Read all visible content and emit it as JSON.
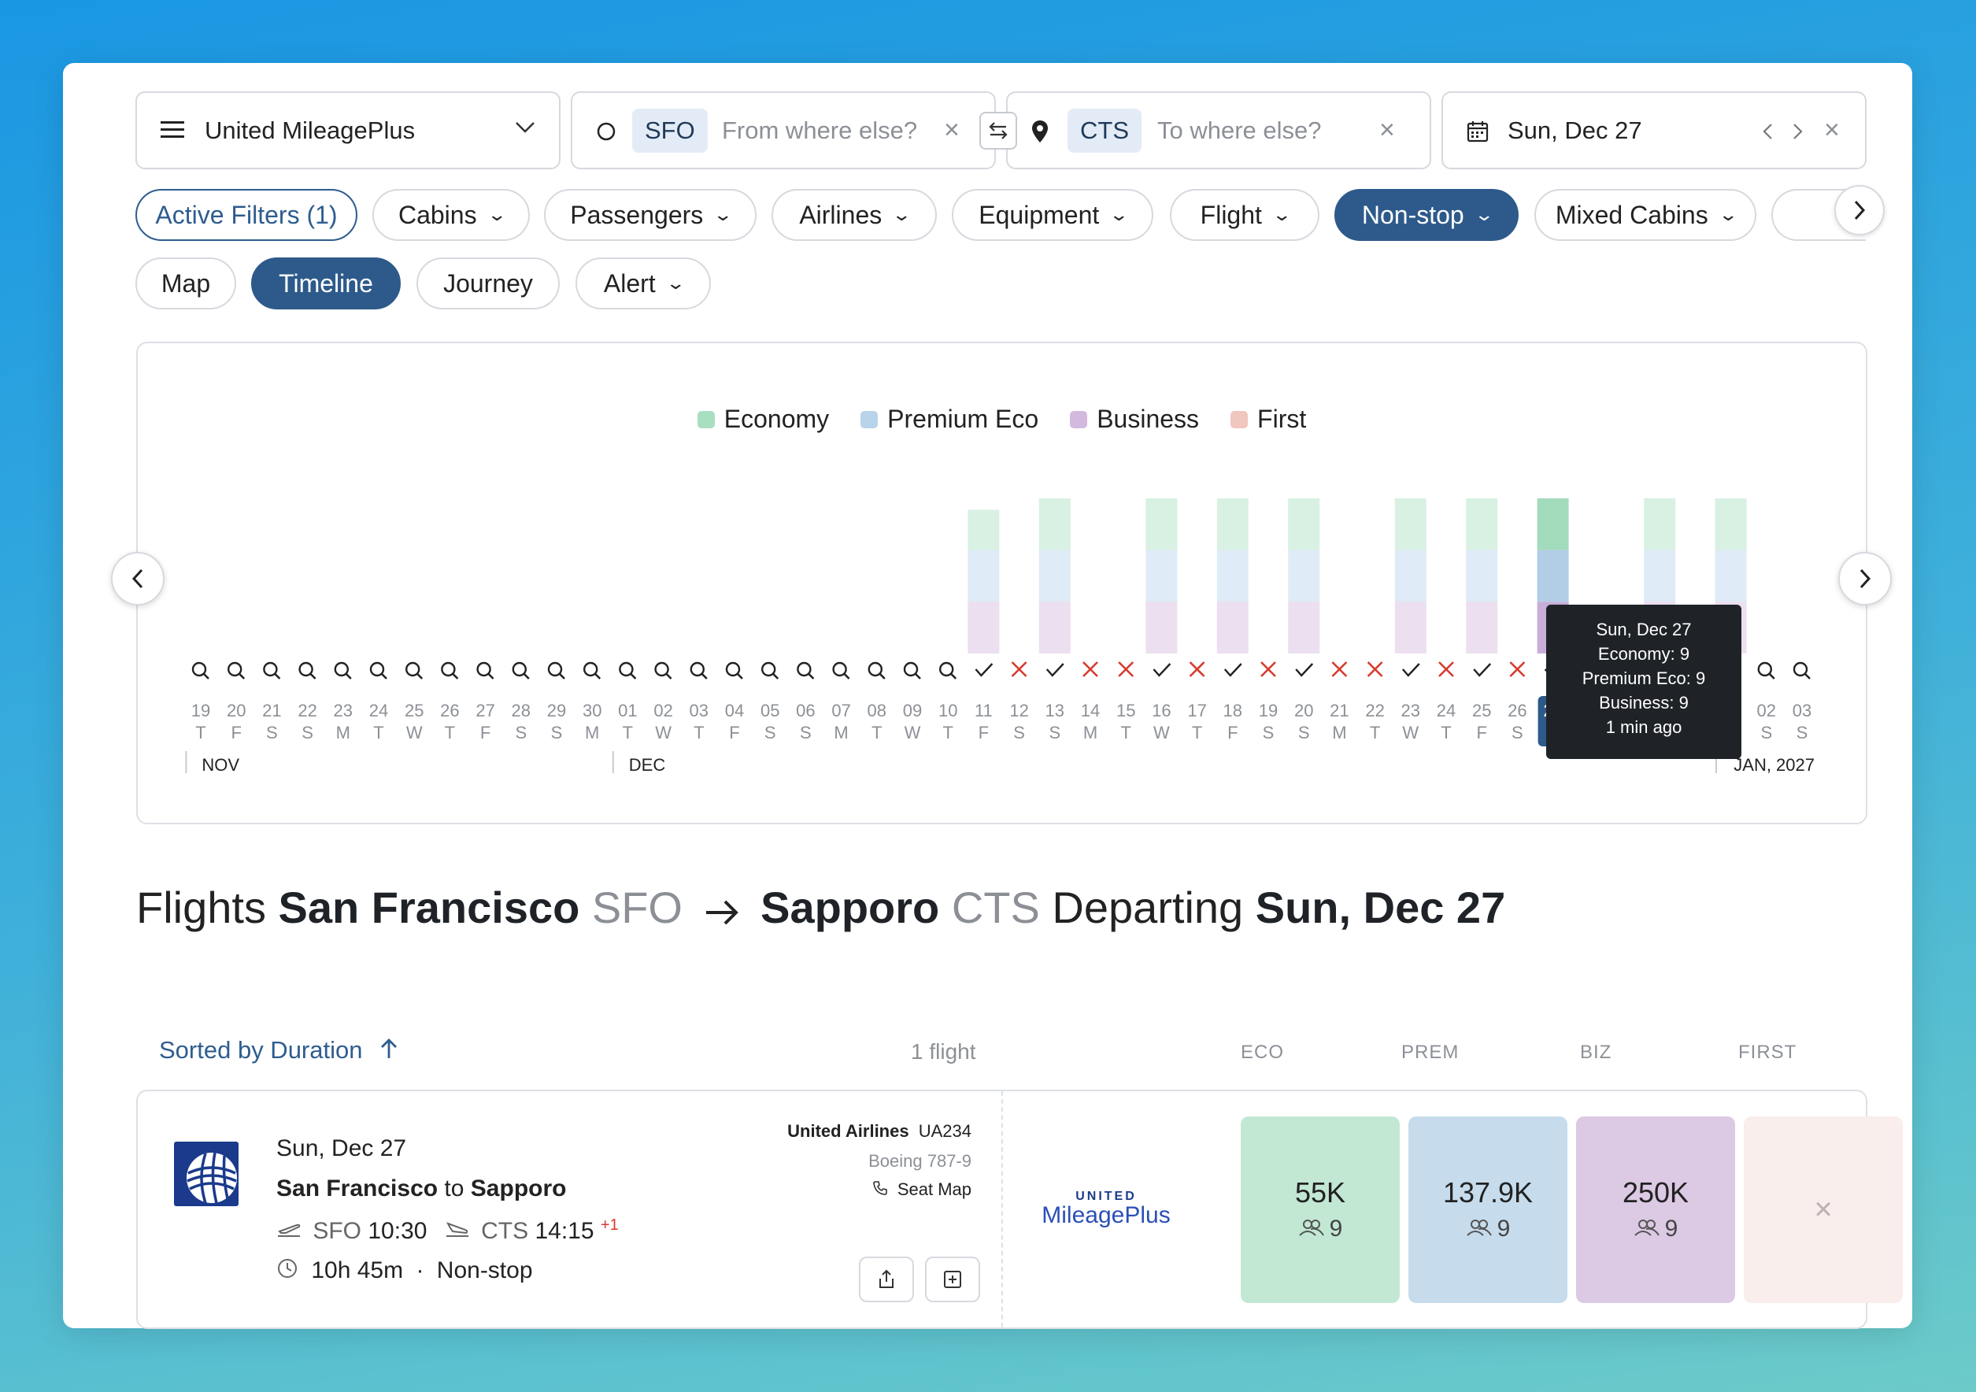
{
  "search": {
    "program": "United MileagePlus",
    "from_code": "SFO",
    "from_placeholder": "From where else?",
    "to_code": "CTS",
    "to_placeholder": "To where else?",
    "date": "Sun, Dec 27"
  },
  "filters": {
    "active": "Active Filters (1)",
    "items": [
      "Cabins",
      "Passengers",
      "Airlines",
      "Equipment",
      "Flight",
      "Non-stop",
      "Mixed Cabins"
    ]
  },
  "views": {
    "map": "Map",
    "timeline": "Timeline",
    "journey": "Journey",
    "alert": "Alert"
  },
  "colors": {
    "economy": "#a8dfc0",
    "premium": "#b9d3ea",
    "business": "#d4b9de",
    "first": "#f0c6bf",
    "brand": "#2d5a8a",
    "unavailable": "#d63b2e"
  },
  "chart_data": {
    "type": "bar",
    "legend": [
      "Economy",
      "Premium Eco",
      "Business",
      "First"
    ],
    "categories": [
      "19",
      "20",
      "21",
      "22",
      "23",
      "24",
      "25",
      "26",
      "27",
      "28",
      "29",
      "30",
      "01",
      "02",
      "03",
      "04",
      "05",
      "06",
      "07",
      "08",
      "09",
      "10",
      "11",
      "12",
      "13",
      "14",
      "15",
      "16",
      "17",
      "18",
      "19",
      "20",
      "21",
      "22",
      "23",
      "24",
      "25",
      "26",
      "27",
      "28",
      "29",
      "30",
      "31",
      "01",
      "02",
      "03"
    ],
    "weekdays": [
      "T",
      "F",
      "S",
      "S",
      "M",
      "T",
      "W",
      "T",
      "F",
      "S",
      "S",
      "M",
      "T",
      "W",
      "T",
      "F",
      "S",
      "S",
      "M",
      "T",
      "W",
      "T",
      "F",
      "S",
      "S",
      "M",
      "T",
      "W",
      "T",
      "F",
      "S",
      "S",
      "M",
      "T",
      "W",
      "T",
      "F",
      "S",
      "S",
      "M",
      "T",
      "W",
      "T",
      "F",
      "S",
      "S"
    ],
    "status": [
      "search",
      "search",
      "search",
      "search",
      "search",
      "search",
      "search",
      "search",
      "search",
      "search",
      "search",
      "search",
      "search",
      "search",
      "search",
      "search",
      "search",
      "search",
      "search",
      "search",
      "search",
      "search",
      "check",
      "x",
      "check",
      "x",
      "x",
      "check",
      "x",
      "check",
      "x",
      "check",
      "x",
      "x",
      "check",
      "x",
      "check",
      "x",
      "check",
      "x",
      "x",
      "check",
      "x",
      "check",
      "search",
      "search"
    ],
    "series": [
      {
        "name": "Economy",
        "values": [
          0,
          0,
          0,
          0,
          0,
          0,
          0,
          0,
          0,
          0,
          0,
          0,
          0,
          0,
          0,
          0,
          0,
          0,
          0,
          0,
          0,
          0,
          7,
          0,
          9,
          0,
          0,
          9,
          0,
          9,
          0,
          9,
          0,
          0,
          9,
          0,
          9,
          0,
          9,
          0,
          0,
          9,
          0,
          9,
          0,
          0
        ]
      },
      {
        "name": "Premium Eco",
        "values": [
          0,
          0,
          0,
          0,
          0,
          0,
          0,
          0,
          0,
          0,
          0,
          0,
          0,
          0,
          0,
          0,
          0,
          0,
          0,
          0,
          0,
          0,
          9,
          0,
          9,
          0,
          0,
          9,
          0,
          9,
          0,
          9,
          0,
          0,
          9,
          0,
          9,
          0,
          9,
          0,
          0,
          9,
          0,
          9,
          0,
          0
        ]
      },
      {
        "name": "Business",
        "values": [
          0,
          0,
          0,
          0,
          0,
          0,
          0,
          0,
          0,
          0,
          0,
          0,
          0,
          0,
          0,
          0,
          0,
          0,
          0,
          0,
          0,
          0,
          9,
          0,
          9,
          0,
          0,
          9,
          0,
          9,
          0,
          9,
          0,
          0,
          9,
          0,
          9,
          0,
          9,
          0,
          0,
          9,
          0,
          9,
          0,
          0
        ]
      },
      {
        "name": "First",
        "values": [
          0,
          0,
          0,
          0,
          0,
          0,
          0,
          0,
          0,
          0,
          0,
          0,
          0,
          0,
          0,
          0,
          0,
          0,
          0,
          0,
          0,
          0,
          0,
          0,
          0,
          0,
          0,
          0,
          0,
          0,
          0,
          0,
          0,
          0,
          0,
          0,
          0,
          0,
          0,
          0,
          0,
          0,
          0,
          0,
          0,
          0
        ]
      }
    ],
    "selected_index": 38,
    "months": [
      {
        "label": "NOV",
        "index": 0
      },
      {
        "label": "DEC",
        "index": 12
      },
      {
        "label": "JAN, 2027",
        "index": 43
      }
    ],
    "tooltip": [
      "Sun, Dec 27",
      "Economy: 9",
      "Premium Eco: 9",
      "Business: 9",
      "1 min ago"
    ]
  },
  "results": {
    "title_prefix": "Flights",
    "origin_city": "San Francisco",
    "origin_code": "SFO",
    "dest_city": "Sapporo",
    "dest_code": "CTS",
    "departing": "Departing",
    "date": "Sun, Dec 27",
    "sort": "Sorted by Duration",
    "count": "1 flight",
    "cols": [
      "ECO",
      "PREM",
      "BIZ",
      "FIRST"
    ]
  },
  "flight": {
    "date": "Sun, Dec 27",
    "from_city": "San Francisco",
    "to_word": "to",
    "to_city": "Sapporo",
    "dep_code": "SFO",
    "dep_time": "10:30",
    "arr_code": "CTS",
    "arr_time": "14:15",
    "day_offset": "+1",
    "duration": "10h 45m",
    "stops": "Non-stop",
    "airline": "United Airlines",
    "flight_no": "UA234",
    "aircraft": "Boeing 787-9",
    "seat_map": "Seat Map",
    "program_logo_top": "UNITED",
    "program_logo_bottom": "MileagePlus",
    "fares": [
      {
        "amount": "55K",
        "seats": "9"
      },
      {
        "amount": "137.9K",
        "seats": "9"
      },
      {
        "amount": "250K",
        "seats": "9"
      },
      {
        "amount": "",
        "seats": ""
      }
    ]
  }
}
